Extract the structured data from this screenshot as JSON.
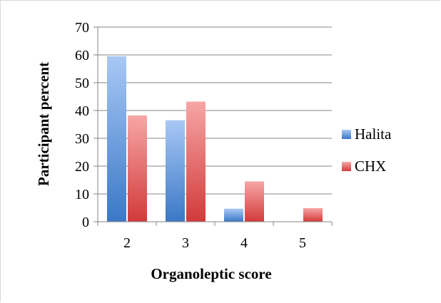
{
  "chart_data": {
    "type": "bar",
    "title": "",
    "xlabel": "Organoleptic score",
    "ylabel": "Participant percent",
    "categories": [
      "2",
      "3",
      "4",
      "5"
    ],
    "ylim": [
      0,
      70
    ],
    "yticks": [
      "0",
      "10",
      "20",
      "30",
      "40",
      "50",
      "60",
      "70"
    ],
    "grid": true,
    "legend_position": "right",
    "series": [
      {
        "name": "Halita",
        "values": [
          59.5,
          36.5,
          4.7,
          0
        ],
        "color": "#4f81bd"
      },
      {
        "name": "CHX",
        "values": [
          38.2,
          43.2,
          14.5,
          4.9
        ],
        "color": "#e04c4c"
      }
    ]
  }
}
